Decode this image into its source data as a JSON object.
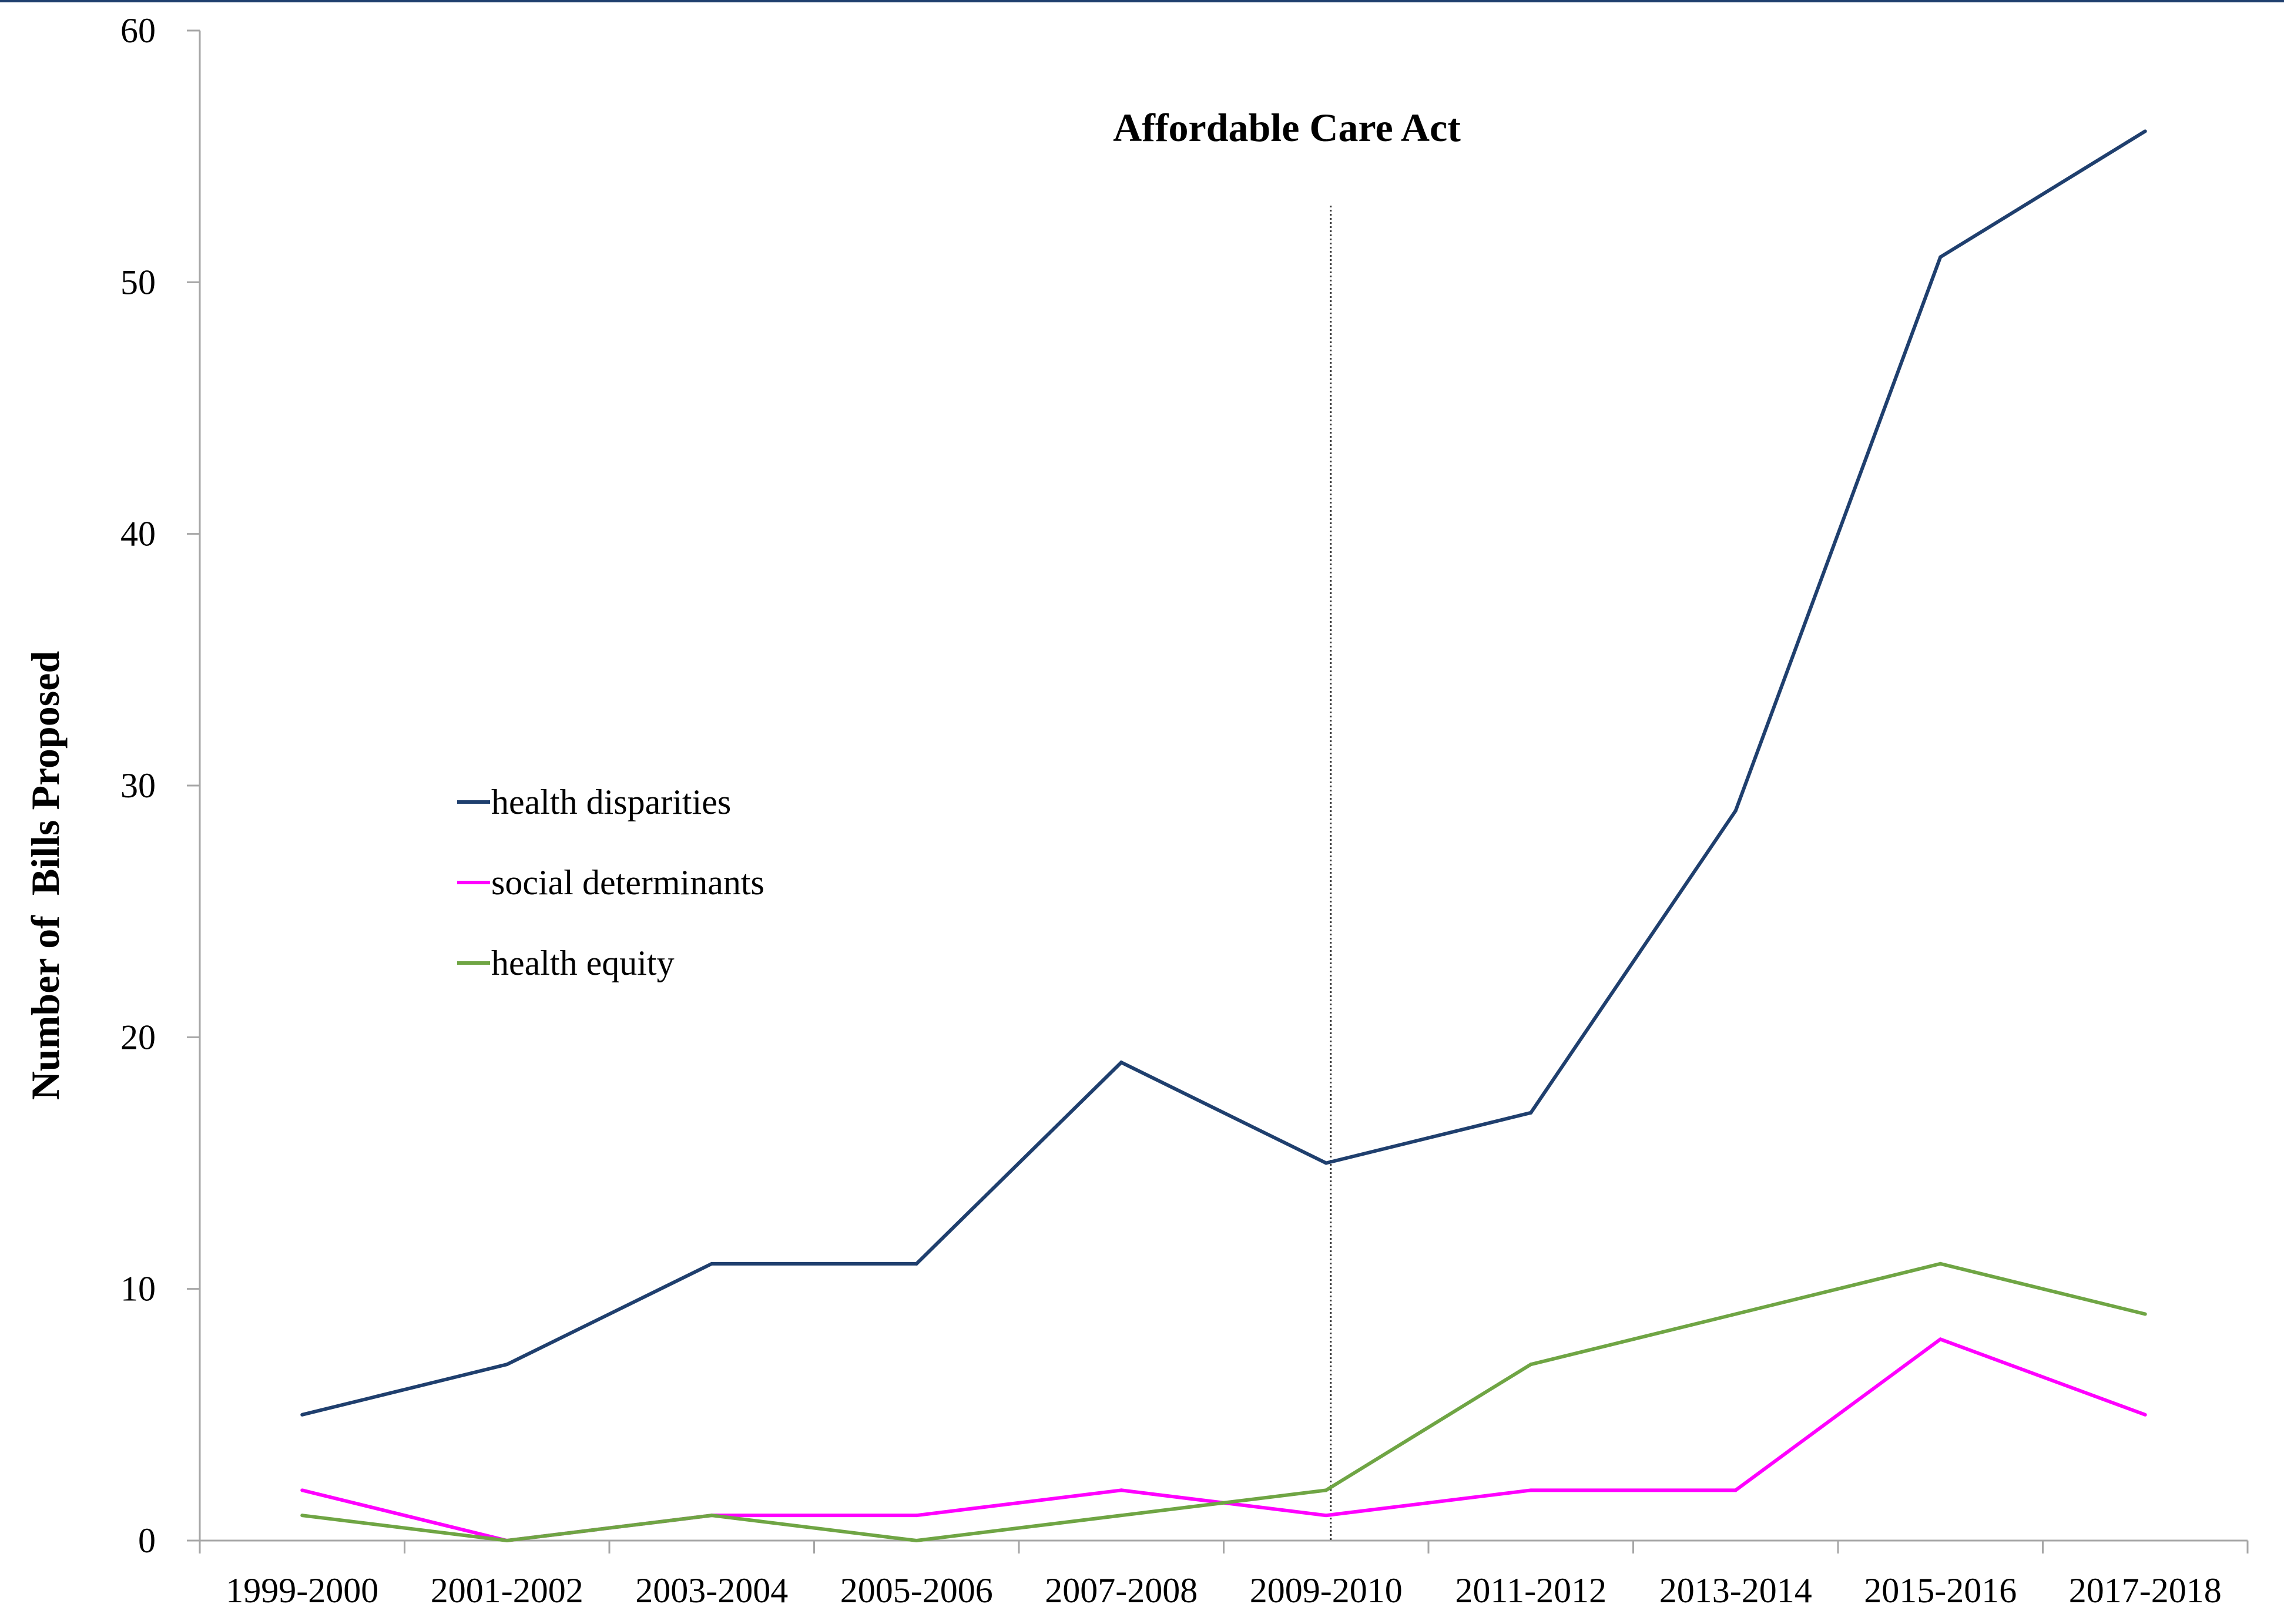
{
  "chart_data": {
    "type": "line",
    "title": "",
    "xlabel": "",
    "ylabel": "Number of  Bills Proposed",
    "ylim": [
      0,
      60
    ],
    "yticks": [
      0,
      10,
      20,
      30,
      40,
      50,
      60
    ],
    "categories": [
      "1999-2000",
      "2001-2002",
      "2003-2004",
      "2005-2006",
      "2007-2008",
      "2009-2010",
      "2011-2012",
      "2013-2014",
      "2015-2016",
      "2017-2018"
    ],
    "series": [
      {
        "name": "health disparities",
        "color": "#1f3f6e",
        "values": [
          5,
          7,
          11,
          11,
          19,
          15,
          17,
          29,
          51,
          56
        ]
      },
      {
        "name": "social determinants",
        "color": "#ff00ff",
        "values": [
          2,
          0,
          1,
          1,
          2,
          1,
          2,
          2,
          8,
          5
        ]
      },
      {
        "name": "health equity",
        "color": "#6fa544",
        "values": [
          1,
          0,
          1,
          0,
          1,
          2,
          7,
          9,
          11,
          9
        ]
      }
    ],
    "annotation": {
      "text": "Affordable Care Act",
      "category": "2009-2010"
    },
    "grid": false,
    "legend_position": "center-left"
  },
  "frame": {
    "top_border_color": "#1f3f6e"
  }
}
